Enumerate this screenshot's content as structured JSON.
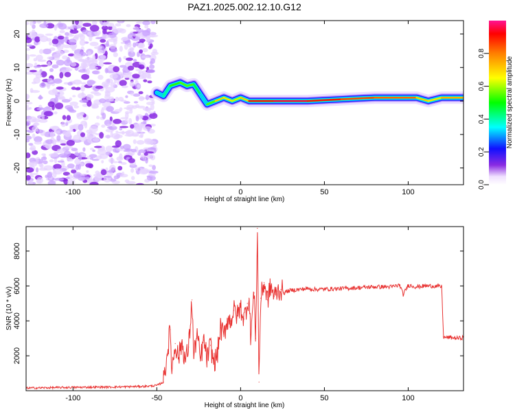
{
  "title": "PAZ1.2025.002.12.10.G12",
  "chart_data": [
    {
      "type": "heatmap",
      "xlabel": "Height of straight line (km)",
      "ylabel": "Frequency (Hz)",
      "xlim": [
        -128,
        133
      ],
      "ylim": [
        -25,
        24
      ],
      "xticks": [
        -100,
        -50,
        0,
        50,
        100
      ],
      "yticks": [
        -20,
        -10,
        0,
        10,
        20
      ],
      "colorbar": {
        "label": "Normalized spectral amplitude",
        "range": [
          0,
          1
        ],
        "ticks": [
          0.0,
          0.2,
          0.4,
          0.6,
          0.8
        ]
      },
      "noise_region_x": [
        -128,
        -51
      ],
      "signal_ridge": [
        {
          "x": -50,
          "y": 2.5,
          "amp": 0.3
        },
        {
          "x": -46,
          "y": 1.5,
          "amp": 0.35
        },
        {
          "x": -42,
          "y": 4.5,
          "amp": 0.45
        },
        {
          "x": -36,
          "y": 5.5,
          "amp": 0.6
        },
        {
          "x": -32,
          "y": 4.5,
          "amp": 0.5
        },
        {
          "x": -28,
          "y": 5,
          "amp": 0.6
        },
        {
          "x": -24,
          "y": 2,
          "amp": 0.3
        },
        {
          "x": -20,
          "y": -1,
          "amp": 0.35
        },
        {
          "x": -15,
          "y": 0,
          "amp": 0.75
        },
        {
          "x": -10,
          "y": 1,
          "amp": 0.65
        },
        {
          "x": -5,
          "y": 0,
          "amp": 0.7
        },
        {
          "x": 0,
          "y": 1,
          "amp": 0.55
        },
        {
          "x": 5,
          "y": 0,
          "amp": 0.85
        },
        {
          "x": 20,
          "y": 0,
          "amp": 0.95
        },
        {
          "x": 40,
          "y": 0,
          "amp": 0.95
        },
        {
          "x": 60,
          "y": 0.5,
          "amp": 0.85
        },
        {
          "x": 80,
          "y": 1,
          "amp": 0.85
        },
        {
          "x": 105,
          "y": 1,
          "amp": 0.8
        },
        {
          "x": 112,
          "y": 0,
          "amp": 0.6
        },
        {
          "x": 120,
          "y": 1,
          "amp": 0.75
        },
        {
          "x": 133,
          "y": 1,
          "amp": 0.75
        }
      ]
    },
    {
      "type": "line",
      "xlabel": "Height of straight line (km)",
      "ylabel": "SNR (10 * v/v)",
      "xlim": [
        -128,
        133
      ],
      "ylim": [
        0,
        9400
      ],
      "xticks": [
        -100,
        -50,
        0,
        50,
        100
      ],
      "yticks": [
        2000,
        4000,
        6000,
        8000
      ],
      "series": [
        {
          "color": "#e8302f",
          "x": [
            -128,
            -110,
            -90,
            -70,
            -55,
            -50,
            -46,
            -44,
            -42,
            -41,
            -39,
            -37,
            -35,
            -33,
            -31,
            -29,
            -28,
            -26,
            -24,
            -22,
            -20,
            -18,
            -16,
            -14,
            -12,
            -10,
            -8,
            -6,
            -4,
            -2,
            0,
            2,
            4,
            5,
            6,
            8,
            9,
            10,
            11,
            12,
            14,
            16,
            18,
            20,
            22,
            24,
            26,
            28,
            30,
            35,
            40,
            45,
            50,
            60,
            70,
            80,
            90,
            95,
            97,
            100,
            105,
            110,
            115,
            120,
            121,
            122,
            125,
            130,
            133
          ],
          "y": [
            150,
            180,
            200,
            220,
            260,
            300,
            500,
            2000,
            3500,
            1200,
            2700,
            1900,
            2800,
            1700,
            2500,
            5200,
            1900,
            3300,
            1700,
            2900,
            1800,
            2600,
            1600,
            2000,
            3600,
            3100,
            4100,
            4000,
            4600,
            4300,
            4800,
            4100,
            5000,
            5300,
            3200,
            5600,
            3000,
            9300,
            500,
            5300,
            6200,
            5200,
            6000,
            5400,
            5700,
            5800,
            5600,
            5700,
            5750,
            5800,
            5850,
            5800,
            5820,
            5850,
            5900,
            5950,
            5950,
            6050,
            5500,
            6050,
            5950,
            6000,
            6000,
            5950,
            3100,
            3050,
            3050,
            3000,
            3050
          ]
        }
      ]
    }
  ]
}
